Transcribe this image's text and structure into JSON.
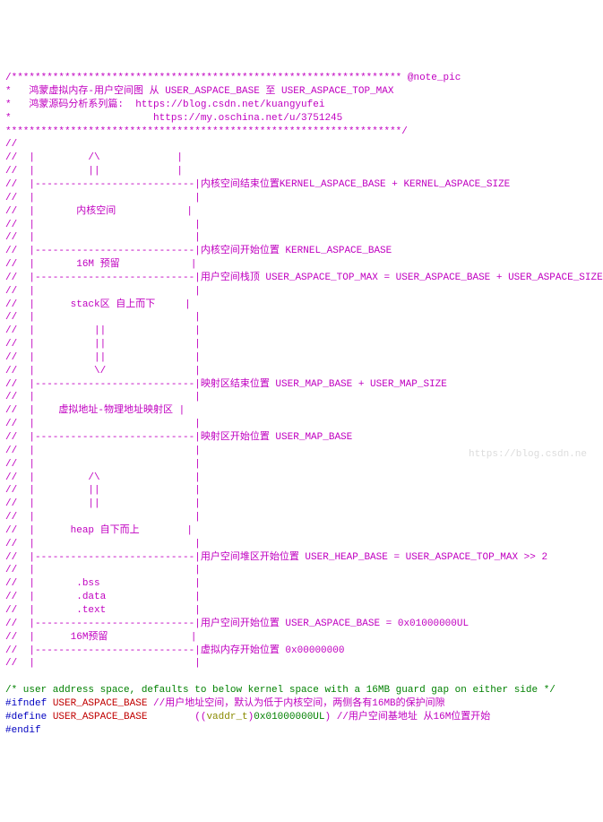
{
  "header": {
    "stars_top": "/******************************************************************",
    "note_tag": " @note_pic",
    "l1": "*   鸿蒙虚拟内存-用户空间图 从 USER_ASPACE_BASE 至 USER_ASPACE_TOP_MAX",
    "l2": "*   鸿蒙源码分析系列篇:  https://blog.csdn.net/kuangyufei",
    "l3": "*                        https://my.oschina.net/u/3751245",
    "stars_bot": "*******************************************************************/"
  },
  "rows": {
    "r01": "//",
    "r02": "//  |         /\\             |",
    "r03": "//  |         ||             |",
    "r04": "//  |---------------------------|内核空间结束位置KERNEL_ASPACE_BASE + KERNEL_ASPACE_SIZE",
    "r05": "//  |                           |",
    "r06": "//  |       内核空间            |",
    "r07": "//  |                           |",
    "r08": "//  |                           |",
    "r09": "//  |---------------------------|内核空间开始位置 KERNEL_ASPACE_BASE",
    "r10": "//  |       16M 预留            |",
    "r11": "//  |---------------------------|用户空间栈顶 USER_ASPACE_TOP_MAX = USER_ASPACE_BASE + USER_ASPACE_SIZE",
    "r12": "//  |                           |",
    "r13": "//  |      stack区 自上而下     |",
    "r14": "//  |                           |",
    "r15": "//  |          ||               |",
    "r16": "//  |          ||               |",
    "r17": "//  |          ||               |",
    "r18": "//  |          \\/               |",
    "r19": "//  |---------------------------|映射区结束位置 USER_MAP_BASE + USER_MAP_SIZE",
    "r20": "//  |                           |",
    "r21": "//  |    虚拟地址-物理地址映射区 |",
    "r22": "//  |                           |",
    "r23": "//  |---------------------------|映射区开始位置 USER_MAP_BASE",
    "r24": "//  |                           |",
    "r25": "//  |                           |",
    "r26": "//  |         /\\                |",
    "r27": "//  |         ||                |",
    "r28": "//  |         ||                |",
    "r29": "//  |                           |",
    "r30": "//  |      heap 自下而上        |",
    "r31": "//  |                           |",
    "r32": "//  |---------------------------|用户空间堆区开始位置 USER_HEAP_BASE = USER_ASPACE_TOP_MAX >> 2",
    "r33": "//  |                           |",
    "r34": "//  |       .bss                |",
    "r35": "//  |       .data               |",
    "r36": "//  |       .text               |",
    "r37": "//  |---------------------------|用户空间开始位置 USER_ASPACE_BASE = 0x01000000UL",
    "r38": "//  |      16M预留              |",
    "r39": "//  |---------------------------|虚拟内存开始位置 0x00000000",
    "r40": "//  |                           |"
  },
  "code": {
    "c1_comment": "/* user address space, defaults to below kernel space with a 16MB guard gap on either side */",
    "c2_ifndef": "#ifndef",
    "c2_macro": " USER_ASPACE_BASE",
    "c2_rest": " //用户地址空间，默认为低于内核空间，两侧各有16MB的保护间隙",
    "c3_define": "#define",
    "c3_macro": " USER_ASPACE_BASE",
    "c3_open": "        ((",
    "c3_type": "vaddr_t",
    "c3_close": ")",
    "c3_num": "0x01000000UL",
    "c3_paren": ") ",
    "c3_cmt": "//用户空间基地址 从16M位置开始",
    "c4_endif": "#endif"
  },
  "watermark": "https://blog.csdn.ne"
}
